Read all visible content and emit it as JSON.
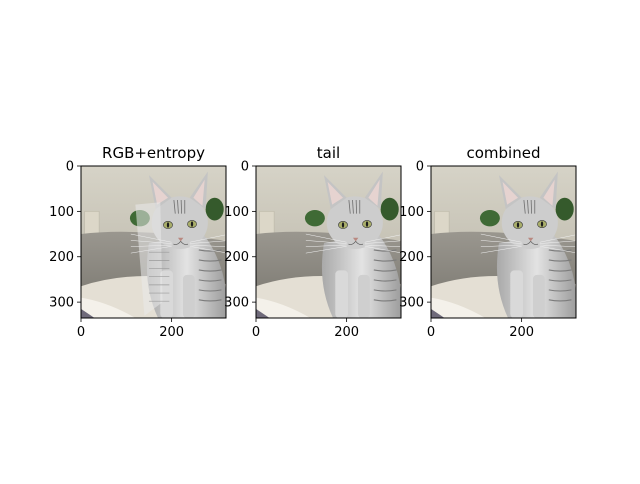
{
  "chart_data": [
    {
      "type": "image",
      "title": "RGB+entropy",
      "xticks": [
        0,
        200
      ],
      "yticks": [
        0,
        100,
        200,
        300
      ],
      "xlim": [
        0,
        320
      ],
      "ylim": [
        335,
        0
      ],
      "image_description": "photo of a grey tabby cat sitting beside a grey sofa, with a shadow/patch artifact near the cat's left shoulder"
    },
    {
      "type": "image",
      "title": "tail",
      "xticks": [
        0,
        200
      ],
      "yticks": [
        0,
        100,
        200,
        300
      ],
      "xlim": [
        0,
        320
      ],
      "ylim": [
        335,
        0
      ],
      "image_description": "photo of a grey tabby cat sitting beside a grey sofa"
    },
    {
      "type": "image",
      "title": "combined",
      "xticks": [
        0,
        200
      ],
      "yticks": [
        0,
        100,
        200,
        300
      ],
      "xlim": [
        0,
        320
      ],
      "ylim": [
        335,
        0
      ],
      "image_description": "photo of a grey tabby cat sitting beside a grey sofa"
    }
  ],
  "colors": {
    "wall": "#c9c6b8",
    "sofa": "#8e8b84",
    "floor": "#e4dfd4",
    "plant": "#3f6a35",
    "cat": "#c7c7c7",
    "cat_dark": "#7b7b7b"
  }
}
